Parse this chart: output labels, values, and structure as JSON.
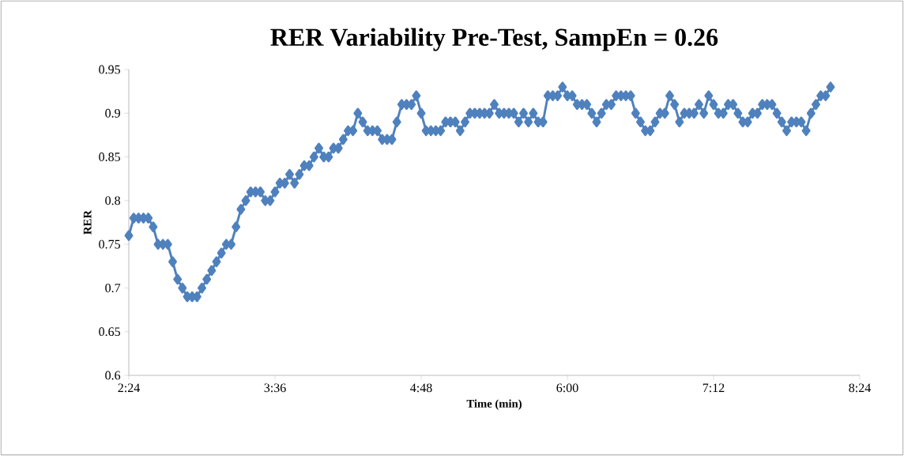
{
  "chart_data": {
    "type": "line",
    "title": "RER Variability Pre-Test, SampEn = 0.26",
    "xlabel": "Time (min)",
    "ylabel": "RER",
    "color": "#4f81bd",
    "marker": "diamond",
    "xlim": [
      2.4,
      8.4
    ],
    "ylim": [
      0.6,
      0.95
    ],
    "xticks": [
      {
        "value": 2.4,
        "label": "2:24"
      },
      {
        "value": 3.6,
        "label": "3:36"
      },
      {
        "value": 4.8,
        "label": "4:48"
      },
      {
        "value": 6.0,
        "label": "6:00"
      },
      {
        "value": 7.2,
        "label": "7:12"
      },
      {
        "value": 8.4,
        "label": "8:24"
      }
    ],
    "yticks": [
      0.6,
      0.65,
      0.7,
      0.75,
      0.8,
      0.85,
      0.9,
      0.95
    ],
    "x": [
      2.4,
      2.44,
      2.48,
      2.52,
      2.56,
      2.6,
      2.64,
      2.68,
      2.72,
      2.76,
      2.8,
      2.84,
      2.88,
      2.92,
      2.96,
      3.0,
      3.04,
      3.08,
      3.12,
      3.16,
      3.2,
      3.24,
      3.28,
      3.32,
      3.36,
      3.4,
      3.44,
      3.48,
      3.52,
      3.56,
      3.6,
      3.64,
      3.68,
      3.72,
      3.76,
      3.8,
      3.84,
      3.88,
      3.92,
      3.96,
      4.0,
      4.04,
      4.08,
      4.12,
      4.16,
      4.2,
      4.24,
      4.28,
      4.32,
      4.36,
      4.4,
      4.44,
      4.48,
      4.52,
      4.56,
      4.6,
      4.64,
      4.68,
      4.72,
      4.76,
      4.8,
      4.84,
      4.88,
      4.92,
      4.96,
      5.0,
      5.04,
      5.08,
      5.12,
      5.16,
      5.2,
      5.24,
      5.28,
      5.32,
      5.36,
      5.4,
      5.44,
      5.48,
      5.52,
      5.56,
      5.6,
      5.64,
      5.68,
      5.72,
      5.76,
      5.8,
      5.84,
      5.88,
      5.92,
      5.96,
      6.0,
      6.04,
      6.08,
      6.12,
      6.16,
      6.2,
      6.24,
      6.28,
      6.32,
      6.36,
      6.4,
      6.44,
      6.48,
      6.52,
      6.56,
      6.6,
      6.64,
      6.68,
      6.72,
      6.76,
      6.8,
      6.84,
      6.88,
      6.92,
      6.96,
      7.0,
      7.04,
      7.08,
      7.12,
      7.16,
      7.2,
      7.24,
      7.28,
      7.32,
      7.36,
      7.4,
      7.44,
      7.48,
      7.52,
      7.56,
      7.6,
      7.64,
      7.68,
      7.72,
      7.76,
      7.8,
      7.84,
      7.88,
      7.92,
      7.96,
      8.0,
      8.04,
      8.08,
      8.12,
      8.16
    ],
    "values": [
      0.76,
      0.78,
      0.78,
      0.78,
      0.78,
      0.77,
      0.75,
      0.75,
      0.75,
      0.73,
      0.71,
      0.7,
      0.69,
      0.69,
      0.69,
      0.7,
      0.71,
      0.72,
      0.73,
      0.74,
      0.75,
      0.75,
      0.77,
      0.79,
      0.8,
      0.81,
      0.81,
      0.81,
      0.8,
      0.8,
      0.81,
      0.82,
      0.82,
      0.83,
      0.82,
      0.83,
      0.84,
      0.84,
      0.85,
      0.86,
      0.85,
      0.85,
      0.86,
      0.86,
      0.87,
      0.88,
      0.88,
      0.9,
      0.89,
      0.88,
      0.88,
      0.88,
      0.87,
      0.87,
      0.87,
      0.89,
      0.91,
      0.91,
      0.91,
      0.92,
      0.9,
      0.88,
      0.88,
      0.88,
      0.88,
      0.89,
      0.89,
      0.89,
      0.88,
      0.89,
      0.9,
      0.9,
      0.9,
      0.9,
      0.9,
      0.91,
      0.9,
      0.9,
      0.9,
      0.9,
      0.89,
      0.9,
      0.89,
      0.9,
      0.89,
      0.89,
      0.92,
      0.92,
      0.92,
      0.93,
      0.92,
      0.92,
      0.91,
      0.91,
      0.91,
      0.9,
      0.89,
      0.9,
      0.91,
      0.91,
      0.92,
      0.92,
      0.92,
      0.92,
      0.9,
      0.89,
      0.88,
      0.88,
      0.89,
      0.9,
      0.9,
      0.92,
      0.91,
      0.89,
      0.9,
      0.9,
      0.9,
      0.91,
      0.9,
      0.92,
      0.91,
      0.9,
      0.9,
      0.91,
      0.91,
      0.9,
      0.89,
      0.89,
      0.9,
      0.9,
      0.91,
      0.91,
      0.91,
      0.9,
      0.89,
      0.88,
      0.89,
      0.89,
      0.89,
      0.88,
      0.9,
      0.91,
      0.92,
      0.92,
      0.93
    ]
  }
}
